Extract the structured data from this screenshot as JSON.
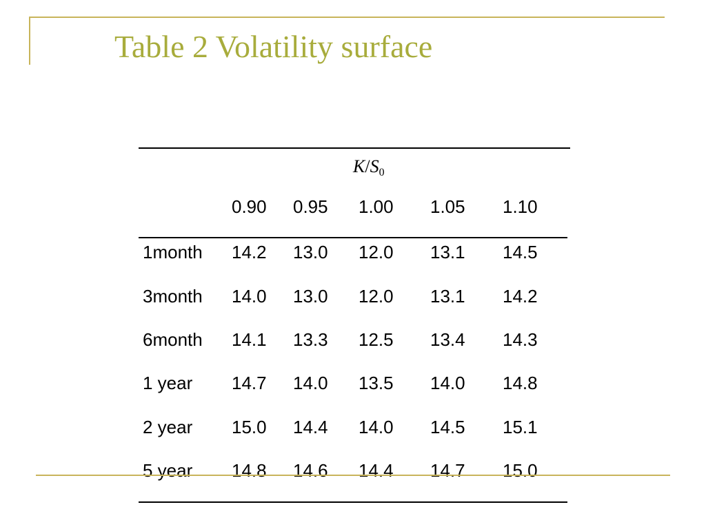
{
  "colors": {
    "accent": "#c8b45a",
    "title": "#a8ac3c"
  },
  "slide": {
    "title": "Table 2 Volatility surface"
  },
  "table": {
    "ratio_header": {
      "k": "K",
      "slash": "/",
      "s": "S",
      "sub": "0"
    },
    "columns": [
      "0.90",
      "0.95",
      "1.00",
      "1.05",
      "1.10"
    ],
    "rows": [
      {
        "label": "1month",
        "values": [
          "14.2",
          "13.0",
          "12.0",
          "13.1",
          "14.5"
        ]
      },
      {
        "label": "3month",
        "values": [
          "14.0",
          "13.0",
          "12.0",
          "13.1",
          "14.2"
        ]
      },
      {
        "label": "6month",
        "values": [
          "14.1",
          "13.3",
          "12.5",
          "13.4",
          "14.3"
        ]
      },
      {
        "label": "1 year",
        "values": [
          "14.7",
          "14.0",
          "13.5",
          "14.0",
          "14.8"
        ]
      },
      {
        "label": "2 year",
        "values": [
          "15.0",
          "14.4",
          "14.0",
          "14.5",
          "15.1"
        ]
      },
      {
        "label": "5 year",
        "values": [
          "14.8",
          "14.6",
          "14.4",
          "14.7",
          "15.0"
        ]
      }
    ]
  }
}
